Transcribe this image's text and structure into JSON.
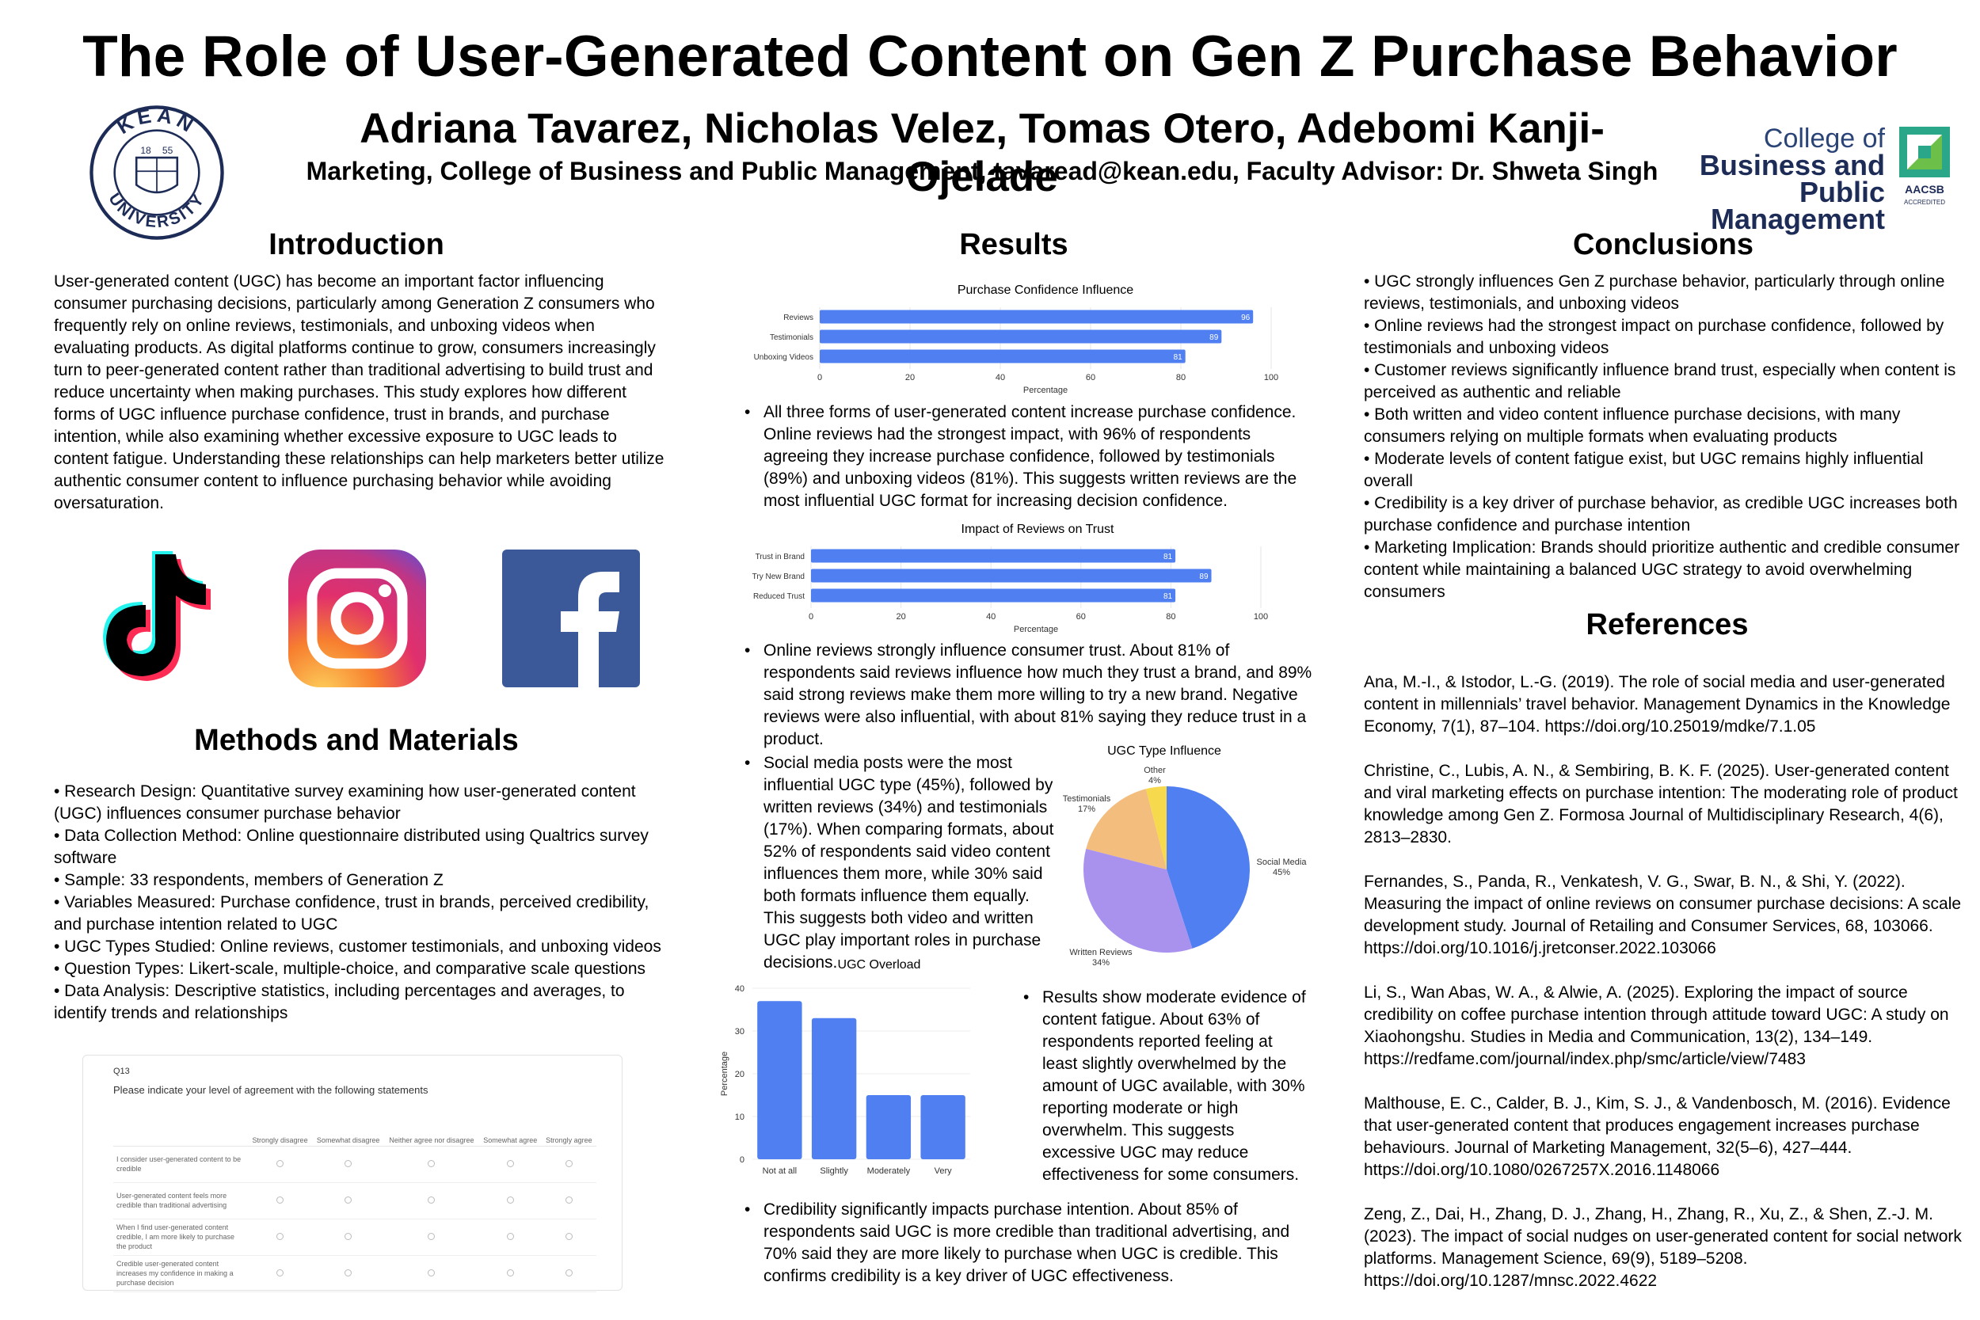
{
  "header": {
    "title": "The Role of User-Generated Content on Gen Z Purchase Behavior",
    "authors": "Adriana Tavarez, Nicholas Velez, Tomas Otero, Adebomi Kanji-Ojelade",
    "affiliation": "Marketing, College of Business and Public Management, tavaread@kean.edu, Faculty Advisor: Dr. Shweta Singh"
  },
  "logos": {
    "kean_top": "KEAN",
    "kean_bottom": "UNIVERSITY",
    "kean_year_left": "18",
    "kean_year_right": "55",
    "college_line1": "College of",
    "college_line2": "Business and",
    "college_line3": "Public Management",
    "aacsb_line1": "AACSB",
    "aacsb_line2": "ACCREDITED"
  },
  "introduction": {
    "title": "Introduction",
    "text": "User-generated content (UGC) has become an important factor influencing consumer purchasing decisions, particularly among Generation Z consumers who frequently rely on online reviews, testimonials, and unboxing videos when evaluating products. As digital platforms continue to grow, consumers increasingly turn to peer-generated content rather than traditional advertising to build trust and reduce uncertainty when making purchases. This study explores how different forms of UGC influence purchase confidence, trust in brands, and purchase intention, while also examining whether excessive exposure to UGC leads to content fatigue. Understanding these relationships can help marketers better utilize authentic consumer content to influence purchasing behavior while avoiding oversaturation."
  },
  "social_icons": [
    "tiktok-icon",
    "instagram-icon",
    "facebook-icon"
  ],
  "methods": {
    "title": "Methods and Materials",
    "items": [
      "• Research Design: Quantitative survey examining how user-generated content (UGC) influences consumer purchase behavior",
      "• Data Collection Method: Online questionnaire distributed using Qualtrics survey software",
      "• Sample: 33 respondents, members of Generation Z",
      "• Variables Measured: Purchase confidence, trust in brands, perceived credibility, and purchase intention related to UGC",
      "• UGC Types Studied: Online reviews, customer testimonials, and unboxing videos",
      "• Question Types: Likert-scale, multiple-choice, and comparative scale questions",
      "• Data Analysis: Descriptive statistics, including percentages and averages, to identify trends and relationships"
    ]
  },
  "survey": {
    "qnum": "Q13",
    "question": "Please indicate your level of agreement with the following statements",
    "columns": [
      "Strongly disagree",
      "Somewhat disagree",
      "Neither agree nor disagree",
      "Somewhat agree",
      "Strongly agree"
    ],
    "rows": [
      "I consider user-generated content to be credible",
      "User-generated content feels more credible than traditional advertising",
      "When I find user-generated content credible, I am more likely to purchase the product",
      "Credible user-generated content increases my confidence in making a purchase decision"
    ]
  },
  "results": {
    "title": "Results",
    "bullet1": "All three forms of user-generated content increase purchase confidence. Online reviews had the strongest impact, with 96% of respondents agreeing they increase purchase confidence, followed by testimonials (89%) and unboxing videos (81%). This suggests written reviews are the most influential UGC format for increasing decision confidence.",
    "bullet2": "Online reviews strongly influence consumer trust. About 81% of respondents said reviews influence how much they trust a brand, and 89% said strong reviews make them more willing to try a new brand. Negative reviews were also influential, with about 81% saying they reduce trust in a product.",
    "bullet3": "Social media posts were the most influential UGC type (45%), followed by written reviews (34%) and testimonials (17%). When comparing formats, about 52% of respondents said video content influences them more, while 30% said both formats influence them equally. This suggests both video and written UGC play important roles in purchase decisions.",
    "bullet4": "Results show moderate evidence of content fatigue. About 63% of respondents reported feeling at least slightly overwhelmed by the amount of UGC available, with 30% reporting moderate or high overwhelm. This suggests excessive UGC may reduce effectiveness for some consumers.",
    "bullet5": "Credibility significantly impacts purchase intention. About 85% of respondents said UGC is more credible than traditional advertising, and 70% said they are more likely to purchase when UGC is credible. This confirms credibility is a key driver of UGC effectiveness."
  },
  "conclusions": {
    "title": "Conclusions",
    "items": [
      "• UGC strongly influences Gen Z purchase behavior, particularly through online reviews, testimonials, and unboxing videos",
      "• Online reviews had the strongest impact on purchase confidence, followed by testimonials and unboxing videos",
      "• Customer reviews significantly influence brand trust, especially when content is perceived as authentic and reliable",
      "• Both written and video content influence purchase decisions, with many consumers relying on multiple formats when evaluating products",
      "• Moderate levels of content fatigue exist, but UGC remains highly influential overall",
      "• Credibility is a key driver of purchase behavior, as credible UGC increases both purchase confidence and purchase intention",
      "• Marketing Implication: Brands should prioritize authentic and credible consumer content while maintaining a balanced UGC strategy to avoid overwhelming consumers"
    ]
  },
  "references": {
    "title": "References",
    "items": [
      "Ana, M.-I., & Istodor, L.-G. (2019). The role of social media and user-generated content in millennials’ travel behavior. Management Dynamics in the Knowledge Economy, 7(1), 87–104. https://doi.org/10.25019/mdke/7.1.05",
      "Christine, C., Lubis, A. N., & Sembiring, B. K. F. (2025). User-generated content and viral marketing effects on purchase intention: The moderating role of product knowledge among Gen Z. Formosa Journal of Multidisciplinary Research, 4(6), 2813–2830.",
      "Fernandes, S., Panda, R., Venkatesh, V. G., Swar, B. N., & Shi, Y. (2022). Measuring the impact of online reviews on consumer purchase decisions: A scale development study. Journal of Retailing and Consumer Services, 68, 103066. https://doi.org/10.1016/j.jretconser.2022.103066",
      "Li, S., Wan Abas, W. A., & Alwie, A. (2025). Exploring the impact of source credibility on coffee purchase intention through attitude toward UGC: A study on Xiaohongshu. Studies in Media and Communication, 13(2), 134–149. https://redfame.com/journal/index.php/smc/article/view/7483",
      "Malthouse, E. C., Calder, B. J., Kim, S. J., & Vandenbosch, M. (2016). Evidence that user-generated content that produces engagement increases purchase behaviours. Journal of Marketing Management, 32(5–6), 427–444. https://doi.org/10.1080/0267257X.2016.1148066",
      "Zeng, Z., Dai, H., Zhang, D. J., Zhang, H., Zhang, R., Xu, Z., & Shen, Z.-J. M. (2023). The impact of social nudges on user-generated content for social network platforms. Management Science, 69(9), 5189–5208. https://doi.org/10.1287/mnsc.2022.4622"
    ]
  },
  "chart_data": [
    {
      "type": "bar",
      "orientation": "horizontal",
      "title": "Purchase Confidence Influence",
      "categories": [
        "Reviews",
        "Testimonials",
        "Unboxing Videos"
      ],
      "values": [
        96,
        89,
        81
      ],
      "xlabel": "Percentage",
      "ylabel": "",
      "xlim": [
        0,
        100
      ],
      "ticks": [
        0,
        20,
        40,
        60,
        80,
        100
      ],
      "color": "#4f7ff0"
    },
    {
      "type": "bar",
      "orientation": "horizontal",
      "title": "Impact of Reviews on Trust",
      "categories": [
        "Trust in Brand",
        "Try New Brand",
        "Reduced Trust"
      ],
      "values": [
        81,
        89,
        81
      ],
      "xlabel": "Percentage",
      "ylabel": "",
      "xlim": [
        0,
        100
      ],
      "ticks": [
        0,
        20,
        40,
        60,
        80,
        100
      ],
      "color": "#4f7ff0"
    },
    {
      "type": "pie",
      "title": "UGC Type Influence",
      "categories": [
        "Social Media",
        "Written Reviews",
        "Testimonials",
        "Other"
      ],
      "values": [
        45,
        34,
        17,
        4
      ],
      "labels": [
        "45%",
        "34%",
        "17%",
        "4%"
      ],
      "colors": [
        "#4f7ff0",
        "#a992ee",
        "#f2bd7d",
        "#f6d94c"
      ]
    },
    {
      "type": "bar",
      "title": "UGC Overload",
      "categories": [
        "Not at all",
        "Slightly",
        "Moderately",
        "Very"
      ],
      "values": [
        37,
        33,
        15,
        15
      ],
      "xlabel": "",
      "ylabel": "Percentage",
      "ylim": [
        0,
        40
      ],
      "ticks": [
        0,
        10,
        20,
        30,
        40
      ],
      "color": "#4f7ff0"
    }
  ]
}
